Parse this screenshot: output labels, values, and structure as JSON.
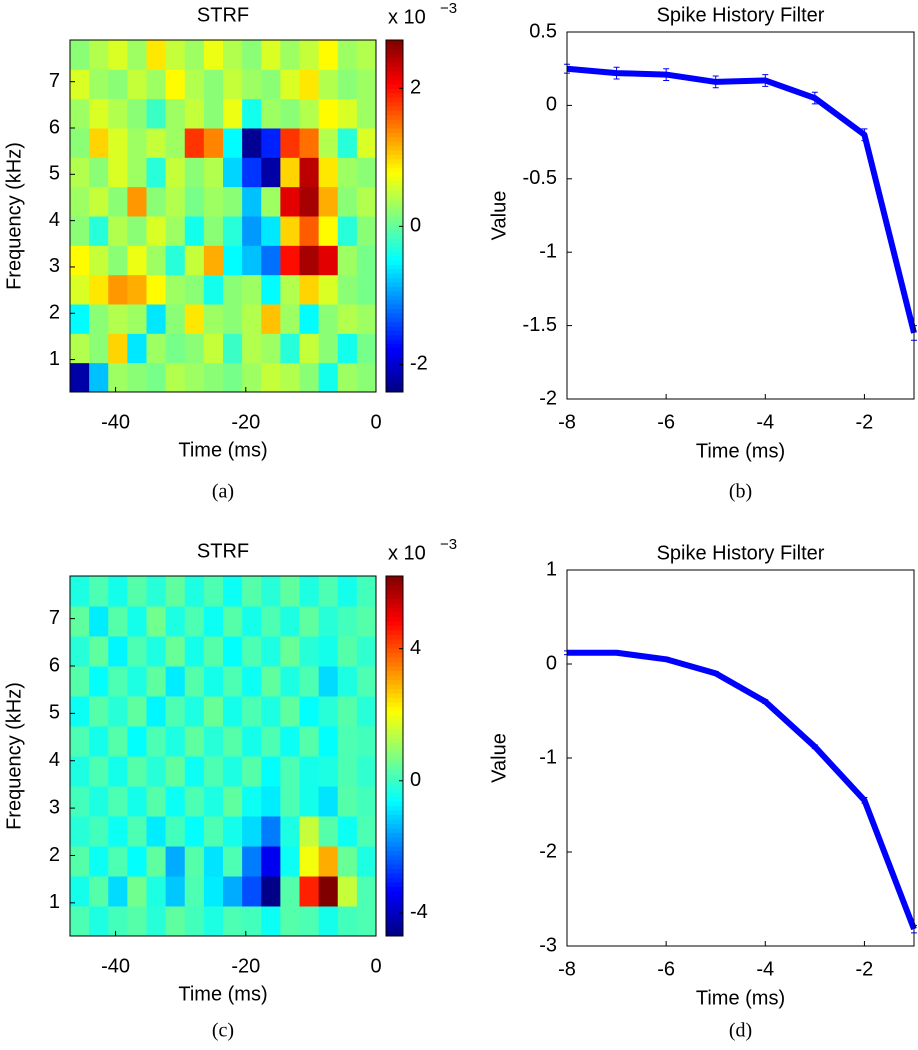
{
  "chart_data": [
    {
      "type": "heatmap",
      "title": "STRF",
      "x_label": "Time (ms)",
      "y_label": "Frequency (kHz)",
      "caption": "(a)",
      "xlim": [
        -47,
        0
      ],
      "ylim": [
        0.3,
        7.9
      ],
      "xticks": [
        -40,
        -20,
        0
      ],
      "yticks": [
        1,
        2,
        3,
        4,
        5,
        6,
        7
      ],
      "colormap": "jet",
      "clim": [
        -2.4,
        2.7
      ],
      "cticks": [
        -2,
        0,
        2
      ],
      "colorbar_multiplier": "x 10",
      "colorbar_exponent": "−3",
      "values": [
        [
          -2.2,
          -0.8,
          0.3,
          0.2,
          0.1,
          0.4,
          0.3,
          0.2,
          0.1,
          0.3,
          0.5,
          0.4,
          0.2,
          -0.4,
          0.3,
          0.2
        ],
        [
          0.4,
          0.2,
          1.0,
          -0.6,
          0.3,
          0.1,
          0.2,
          0.5,
          -0.2,
          0.4,
          0.3,
          -0.3,
          0.5,
          0.2,
          -0.4,
          0.1
        ],
        [
          -0.5,
          0.2,
          0.4,
          0.3,
          -0.6,
          0.2,
          0.9,
          0.3,
          0.2,
          0.4,
          1.1,
          0.3,
          -0.5,
          0.2,
          0.4,
          0.3
        ],
        [
          0.6,
          0.9,
          1.3,
          1.2,
          0.8,
          0.3,
          0.2,
          -0.4,
          0.2,
          0.3,
          -0.5,
          0.4,
          1.0,
          0.6,
          0.2,
          0.1
        ],
        [
          0.8,
          0.5,
          0.2,
          0.7,
          0.3,
          -0.3,
          0.5,
          1.2,
          -0.5,
          -0.8,
          -1.2,
          2.0,
          2.5,
          2.2,
          0.3,
          0.1
        ],
        [
          0.2,
          -0.3,
          0.4,
          0.2,
          0.6,
          0.3,
          -0.4,
          0.2,
          -0.3,
          -1.0,
          -0.6,
          1.0,
          1.6,
          0.8,
          -0.3,
          0.2
        ],
        [
          0.3,
          0.5,
          0.2,
          1.3,
          0.2,
          0.4,
          0.1,
          0.3,
          0.2,
          -0.8,
          0.3,
          2.2,
          2.5,
          1.2,
          0.2,
          0.4
        ],
        [
          0.4,
          0.2,
          0.6,
          0.3,
          -0.3,
          0.5,
          0.2,
          0.4,
          -0.7,
          -1.5,
          -2.2,
          1.0,
          2.4,
          0.9,
          0.3,
          0.2
        ],
        [
          0.2,
          1.0,
          0.6,
          0.3,
          0.5,
          0.3,
          1.8,
          1.4,
          -0.5,
          -2.3,
          -1.6,
          1.8,
          1.5,
          0.4,
          -0.3,
          0.6
        ],
        [
          0.3,
          0.6,
          0.4,
          0.2,
          -0.2,
          0.3,
          0.5,
          0.2,
          0.7,
          -0.4,
          0.3,
          0.2,
          0.4,
          0.8,
          0.6,
          0.3
        ],
        [
          0.6,
          0.3,
          0.2,
          0.5,
          0.3,
          0.8,
          0.4,
          0.2,
          0.5,
          0.3,
          0.2,
          0.6,
          0.9,
          0.4,
          0.2,
          0.3
        ],
        [
          0.2,
          0.4,
          0.6,
          0.3,
          0.9,
          0.5,
          0.3,
          0.7,
          0.4,
          0.2,
          0.6,
          0.3,
          0.5,
          0.8,
          0.3,
          0.4
        ]
      ]
    },
    {
      "type": "line",
      "title": "Spike History Filter",
      "x_label": "Time (ms)",
      "y_label": "Value",
      "caption": "(b)",
      "x": [
        -8,
        -7,
        -6,
        -5,
        -4,
        -3,
        -2,
        -1
      ],
      "xlim": [
        -8,
        -1
      ],
      "ylim": [
        -2,
        0.5
      ],
      "xticks": [
        -8,
        -6,
        -4,
        -2
      ],
      "yticks": [
        -2,
        -1.5,
        -1,
        -0.5,
        0,
        0.5
      ],
      "series": [
        {
          "color": "#0000ff",
          "values": [
            0.25,
            0.22,
            0.21,
            0.16,
            0.17,
            0.05,
            -0.2,
            -1.55
          ],
          "errors": [
            0.03,
            0.04,
            0.04,
            0.04,
            0.04,
            0.04,
            0.04,
            0.05
          ]
        }
      ]
    },
    {
      "type": "heatmap",
      "title": "STRF",
      "x_label": "Time (ms)",
      "y_label": "Frequency (kHz)",
      "caption": "(c)",
      "xlim": [
        -47,
        0
      ],
      "ylim": [
        0.3,
        7.9
      ],
      "xticks": [
        -40,
        -20,
        0
      ],
      "yticks": [
        1,
        2,
        3,
        4,
        5,
        6,
        7
      ],
      "colormap": "jet",
      "clim": [
        -4.7,
        6.2
      ],
      "cticks": [
        -4,
        0,
        4
      ],
      "colorbar_multiplier": "x 10",
      "colorbar_exponent": "−3",
      "values": [
        [
          0.2,
          -0.3,
          0.1,
          0.3,
          -0.2,
          0.4,
          0.1,
          -0.3,
          0.2,
          0.1,
          -0.5,
          0.3,
          0.2,
          -0.4,
          0.1,
          0.2
        ],
        [
          -0.4,
          0.3,
          -1.0,
          0.6,
          -0.3,
          -1.2,
          0.2,
          -0.8,
          -1.5,
          -2.5,
          -4.6,
          0.3,
          4.5,
          6.2,
          1.5,
          0.2
        ],
        [
          0.3,
          -0.5,
          0.2,
          -0.6,
          0.4,
          -1.5,
          0.3,
          -0.9,
          0.2,
          -2.0,
          -3.5,
          -0.5,
          2.0,
          3.0,
          0.5,
          -0.3
        ],
        [
          -0.2,
          0.1,
          -0.5,
          0.2,
          -0.8,
          0.1,
          -0.6,
          0.2,
          -0.4,
          -1.0,
          -2.0,
          -0.3,
          1.5,
          0.3,
          -0.5,
          0.2
        ],
        [
          0.1,
          -0.3,
          0.2,
          -0.4,
          0.3,
          -0.5,
          0.2,
          -0.3,
          0.4,
          -0.5,
          -0.8,
          0.2,
          -0.4,
          -0.9,
          0.3,
          0.1
        ],
        [
          -0.3,
          0.2,
          -0.4,
          0.3,
          -0.2,
          0.4,
          -0.5,
          0.2,
          -0.3,
          0.3,
          -0.6,
          0.2,
          -0.4,
          -0.3,
          0.2,
          -0.1
        ],
        [
          0.2,
          -0.4,
          0.3,
          -0.6,
          0.2,
          -0.3,
          0.4,
          -0.2,
          0.3,
          -0.4,
          0.2,
          -0.5,
          0.3,
          -0.6,
          0.2,
          0.1
        ],
        [
          -0.5,
          0.3,
          -0.2,
          0.4,
          -0.7,
          0.2,
          -0.3,
          0.5,
          -0.4,
          0.2,
          -0.3,
          0.4,
          -0.6,
          -0.2,
          0.3,
          -0.2
        ],
        [
          0.3,
          -0.6,
          0.2,
          -0.3,
          0.4,
          -0.8,
          0.3,
          -0.4,
          0.2,
          -0.5,
          0.4,
          -0.3,
          0.2,
          -1.0,
          -0.3,
          0.2
        ],
        [
          -0.2,
          0.4,
          -0.7,
          0.2,
          -0.3,
          0.5,
          -0.4,
          0.3,
          -0.6,
          0.2,
          -0.3,
          0.5,
          -0.2,
          -0.4,
          0.3,
          -0.1
        ],
        [
          0.4,
          -0.8,
          0.3,
          -0.4,
          0.6,
          -0.3,
          0.2,
          -0.5,
          0.3,
          -0.4,
          0.2,
          -0.3,
          0.4,
          -0.2,
          0.1,
          0.3
        ],
        [
          -0.3,
          0.2,
          -0.4,
          0.3,
          -0.2,
          0.4,
          -0.3,
          0.2,
          -0.5,
          0.3,
          -0.2,
          0.4,
          -0.3,
          0.2,
          -0.4,
          0.1
        ]
      ]
    },
    {
      "type": "line",
      "title": "Spike History Filter",
      "x_label": "Time (ms)",
      "y_label": "Value",
      "caption": "(d)",
      "x": [
        -8,
        -7,
        -6,
        -5,
        -4,
        -3,
        -2,
        -1
      ],
      "xlim": [
        -8,
        -1
      ],
      "ylim": [
        -3,
        1
      ],
      "xticks": [
        -8,
        -6,
        -4,
        -2
      ],
      "yticks": [
        -3,
        -2,
        -1,
        0,
        1
      ],
      "series": [
        {
          "color": "#0000ff",
          "values": [
            0.12,
            0.12,
            0.05,
            -0.1,
            -0.4,
            -0.88,
            -1.45,
            -2.82
          ],
          "errors": [
            0.02,
            0.02,
            0.02,
            0.02,
            0.02,
            0.02,
            0.03,
            0.04
          ]
        }
      ]
    }
  ]
}
